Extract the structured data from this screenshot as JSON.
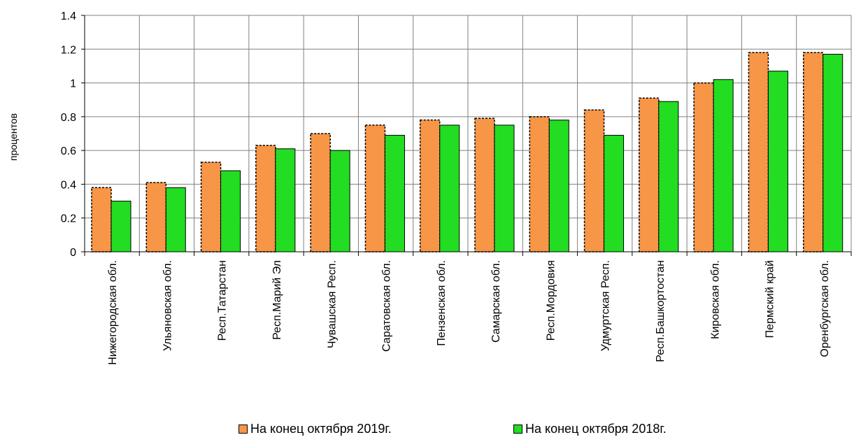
{
  "chart_data": {
    "type": "bar",
    "title": "",
    "xlabel": "",
    "ylabel": "процентов",
    "ylim": [
      0,
      1.4
    ],
    "yticks": [
      "0",
      "0.2",
      "0.4",
      "0.6",
      "0.8",
      "1",
      "1.2",
      "1.4"
    ],
    "grid": true,
    "legend_position": "bottom",
    "categories": [
      "Нижегородская обл.",
      "Ульяновская обл.",
      "Респ.Татарстан",
      "Респ.Марий Эл",
      "Чувашская Респ.",
      "Саратовская обл.",
      "Пензенская обл.",
      "Самарская обл.",
      "Респ.Мордовия",
      "Удмуртская Респ.",
      "Респ.Башкортостан",
      "Кировская обл.",
      "Пермский край",
      "Оренбургская обл."
    ],
    "series": [
      {
        "name": "На конец октября 2019г.",
        "color": "#F79646",
        "values": [
          0.38,
          0.41,
          0.53,
          0.63,
          0.7,
          0.75,
          0.78,
          0.79,
          0.8,
          0.84,
          0.91,
          1.0,
          1.18,
          1.18
        ]
      },
      {
        "name": "На конец октября 2018г.",
        "color": "#22DD22",
        "values": [
          0.3,
          0.38,
          0.48,
          0.61,
          0.6,
          0.69,
          0.75,
          0.75,
          0.78,
          0.69,
          0.89,
          1.02,
          1.07,
          1.17
        ]
      }
    ]
  }
}
